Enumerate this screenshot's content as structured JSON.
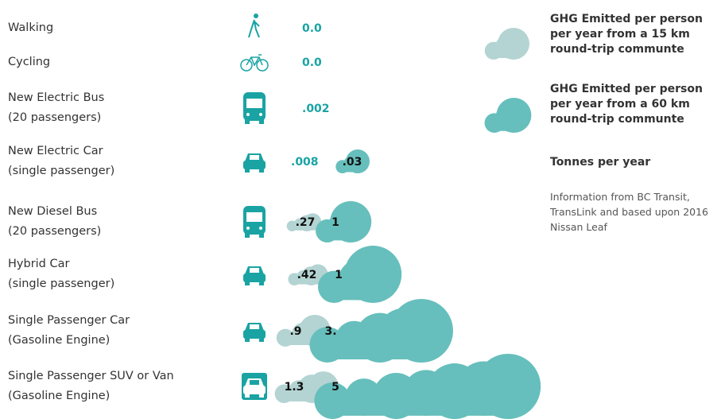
{
  "rows": [
    {
      "label": "Walking",
      "value_15km": "0.0"
    },
    {
      "label": "Cycling",
      "value_15km": "0.0"
    },
    {
      "label": "New Electric Bus",
      "sublabel": "(20 passengers)",
      "value_15km": ".002"
    },
    {
      "label": "New Electric Car",
      "sublabel": "(single passenger)",
      "value_15km": ".008",
      "value_60km": ".03"
    },
    {
      "label": "New Diesel Bus",
      "sublabel": "(20 passengers)",
      "value_15km": ".27",
      "value_60km": "1"
    },
    {
      "label": "Hybrid Car",
      "sublabel": "(single passenger)",
      "value_15km": ".42",
      "value_60km": "1"
    },
    {
      "label": "Single Passenger Car",
      "sublabel": "(Gasoline Engine)",
      "value_15km": ".9",
      "value_60km": "3."
    },
    {
      "label": "Single Passenger SUV or Van",
      "sublabel": "(Gasoline Engine)",
      "value_15km": "1.3",
      "value_60km": "5"
    }
  ],
  "legend": {
    "items": [
      "GHG Emitted per person per year from a 15 km round-trip communte",
      "GHG Emitted per person per year from a 60 km round-trip communte"
    ],
    "unit": "Tonnes per year",
    "source": "Information from BC Transit, TransLink and based upon 2016 Nissan Leaf"
  }
}
